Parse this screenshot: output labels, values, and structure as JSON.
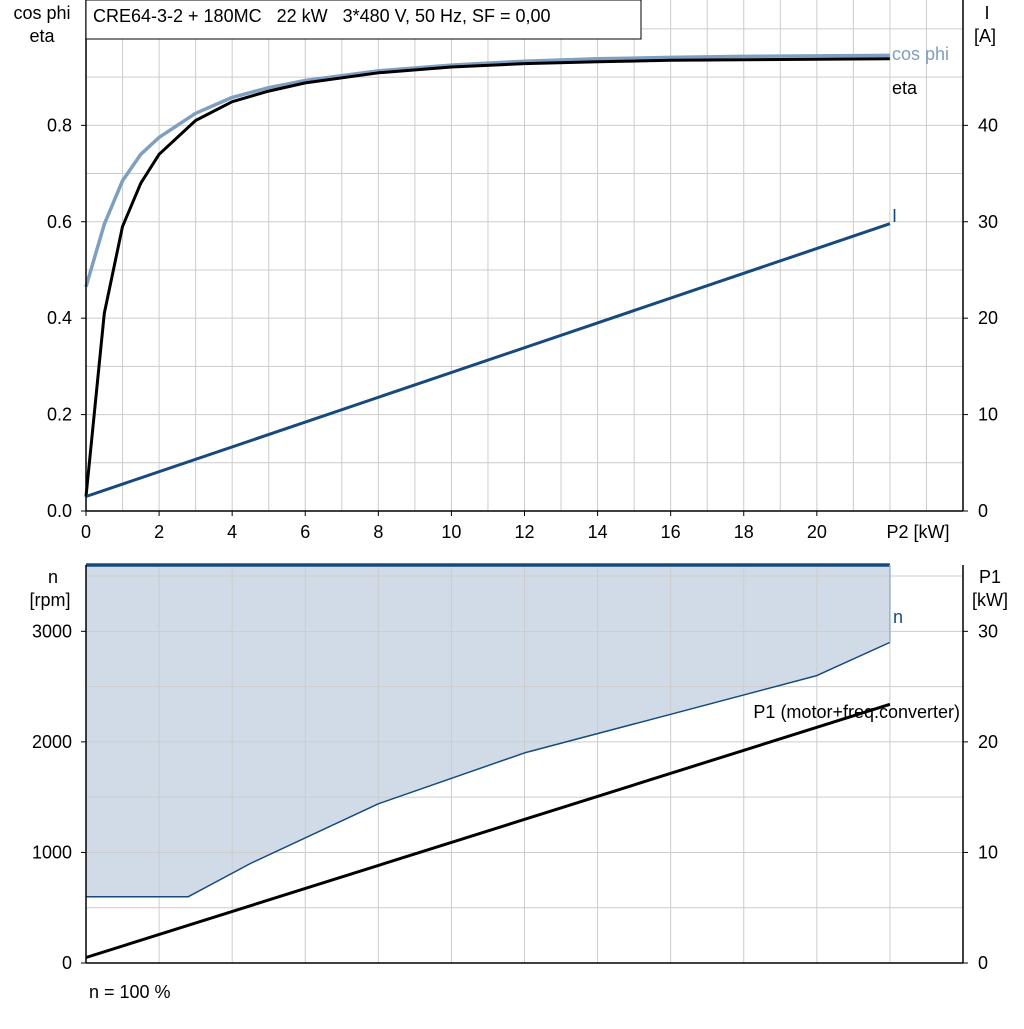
{
  "top_chart": {
    "title_box": "CRE64-3-2 + 180MC   22 kW   3*480 V, 50 Hz, SF = 0,00",
    "left_axis_label_1": "cos phi",
    "left_axis_label_2": "eta",
    "right_axis_label_1": "I",
    "right_axis_label_2": "[A]",
    "x_axis_unit_label": "P2 [kW]",
    "curve_label_cosphi": "cos phi",
    "curve_label_eta": "eta",
    "curve_label_I": "I"
  },
  "bottom_chart": {
    "left_axis_label_1": "n",
    "left_axis_label_2": "[rpm]",
    "right_axis_label_1": "P1",
    "right_axis_label_2": "[kW]",
    "curve_label_n": "n",
    "curve_label_P1": "P1 (motor+freq.converter)",
    "footnote": "n = 100 %"
  },
  "colors": {
    "grid": "#cccccc",
    "axis": "#000000",
    "cosphi": "#7f9fc0",
    "eta": "#000000",
    "current": "#174a7c",
    "speed": "#174a7c",
    "speed_fill": "#d0dbe7",
    "p1": "#000000"
  },
  "chart_data": [
    {
      "type": "line",
      "x": {
        "label": "P2 [kW]",
        "range": [
          0,
          24
        ],
        "ticks": [
          0,
          2,
          4,
          6,
          8,
          10,
          12,
          14,
          16,
          18,
          20
        ]
      },
      "y_left": {
        "label": "cos phi / eta",
        "range": [
          0,
          1.06
        ],
        "ticks": [
          0.0,
          0.2,
          0.4,
          0.6,
          0.8
        ],
        "tick_labels": [
          "0.0",
          "0.2",
          "0.4",
          "0.6",
          "0.8"
        ]
      },
      "y_right": {
        "label": "I [A]",
        "range": [
          0,
          53
        ],
        "ticks": [
          0,
          10,
          20,
          30,
          40
        ],
        "tick_labels": [
          "0",
          "10",
          "20",
          "30",
          "40"
        ]
      },
      "grid": true,
      "series": [
        {
          "name": "cos phi",
          "axis": "left",
          "points": [
            [
              0,
              0.465
            ],
            [
              0.5,
              0.595
            ],
            [
              1,
              0.685
            ],
            [
              1.5,
              0.74
            ],
            [
              2,
              0.775
            ],
            [
              3,
              0.825
            ],
            [
              4,
              0.858
            ],
            [
              5,
              0.878
            ],
            [
              6,
              0.893
            ],
            [
              8,
              0.913
            ],
            [
              10,
              0.925
            ],
            [
              12,
              0.933
            ],
            [
              14,
              0.938
            ],
            [
              16,
              0.941
            ],
            [
              18,
              0.943
            ],
            [
              20,
              0.944
            ],
            [
              22,
              0.945
            ]
          ]
        },
        {
          "name": "eta",
          "axis": "left",
          "points": [
            [
              0,
              0.03
            ],
            [
              0.5,
              0.41
            ],
            [
              1,
              0.59
            ],
            [
              1.5,
              0.68
            ],
            [
              2,
              0.74
            ],
            [
              3,
              0.81
            ],
            [
              4,
              0.849
            ],
            [
              5,
              0.871
            ],
            [
              6,
              0.888
            ],
            [
              8,
              0.909
            ],
            [
              10,
              0.921
            ],
            [
              12,
              0.928
            ],
            [
              14,
              0.932
            ],
            [
              16,
              0.935
            ],
            [
              18,
              0.936
            ],
            [
              20,
              0.937
            ],
            [
              22,
              0.938
            ]
          ]
        },
        {
          "name": "I",
          "axis": "right",
          "points": [
            [
              0,
              1.5
            ],
            [
              22,
              29.8
            ]
          ]
        }
      ]
    },
    {
      "type": "area",
      "x": {
        "label": "P2 [kW]",
        "range": [
          0,
          24
        ]
      },
      "y_left": {
        "label": "n [rpm]",
        "range": [
          0,
          3600
        ],
        "ticks": [
          0,
          1000,
          2000,
          3000
        ],
        "tick_labels": [
          "0",
          "1000",
          "2000",
          "3000"
        ]
      },
      "y_right": {
        "label": "P1 [kW]",
        "range": [
          0,
          36
        ],
        "ticks": [
          0,
          10,
          20,
          30
        ],
        "tick_labels": [
          "0",
          "10",
          "20",
          "30"
        ]
      },
      "grid": true,
      "series": [
        {
          "name": "n",
          "axis": "left",
          "points": [
            [
              0,
              3600
            ],
            [
              22,
              3600
            ]
          ]
        },
        {
          "name": "n min",
          "axis": "left",
          "points": [
            [
              0,
              600
            ],
            [
              2.8,
              600
            ],
            [
              4.5,
              900
            ],
            [
              8,
              1440
            ],
            [
              12,
              1900
            ],
            [
              16,
              2250
            ],
            [
              20,
              2600
            ],
            [
              22,
              2900
            ]
          ]
        },
        {
          "name": "P1 (motor+freq.converter)",
          "axis": "right",
          "points": [
            [
              0,
              0.5
            ],
            [
              22,
              23.4
            ]
          ]
        }
      ],
      "footnote": "n = 100 %"
    }
  ]
}
